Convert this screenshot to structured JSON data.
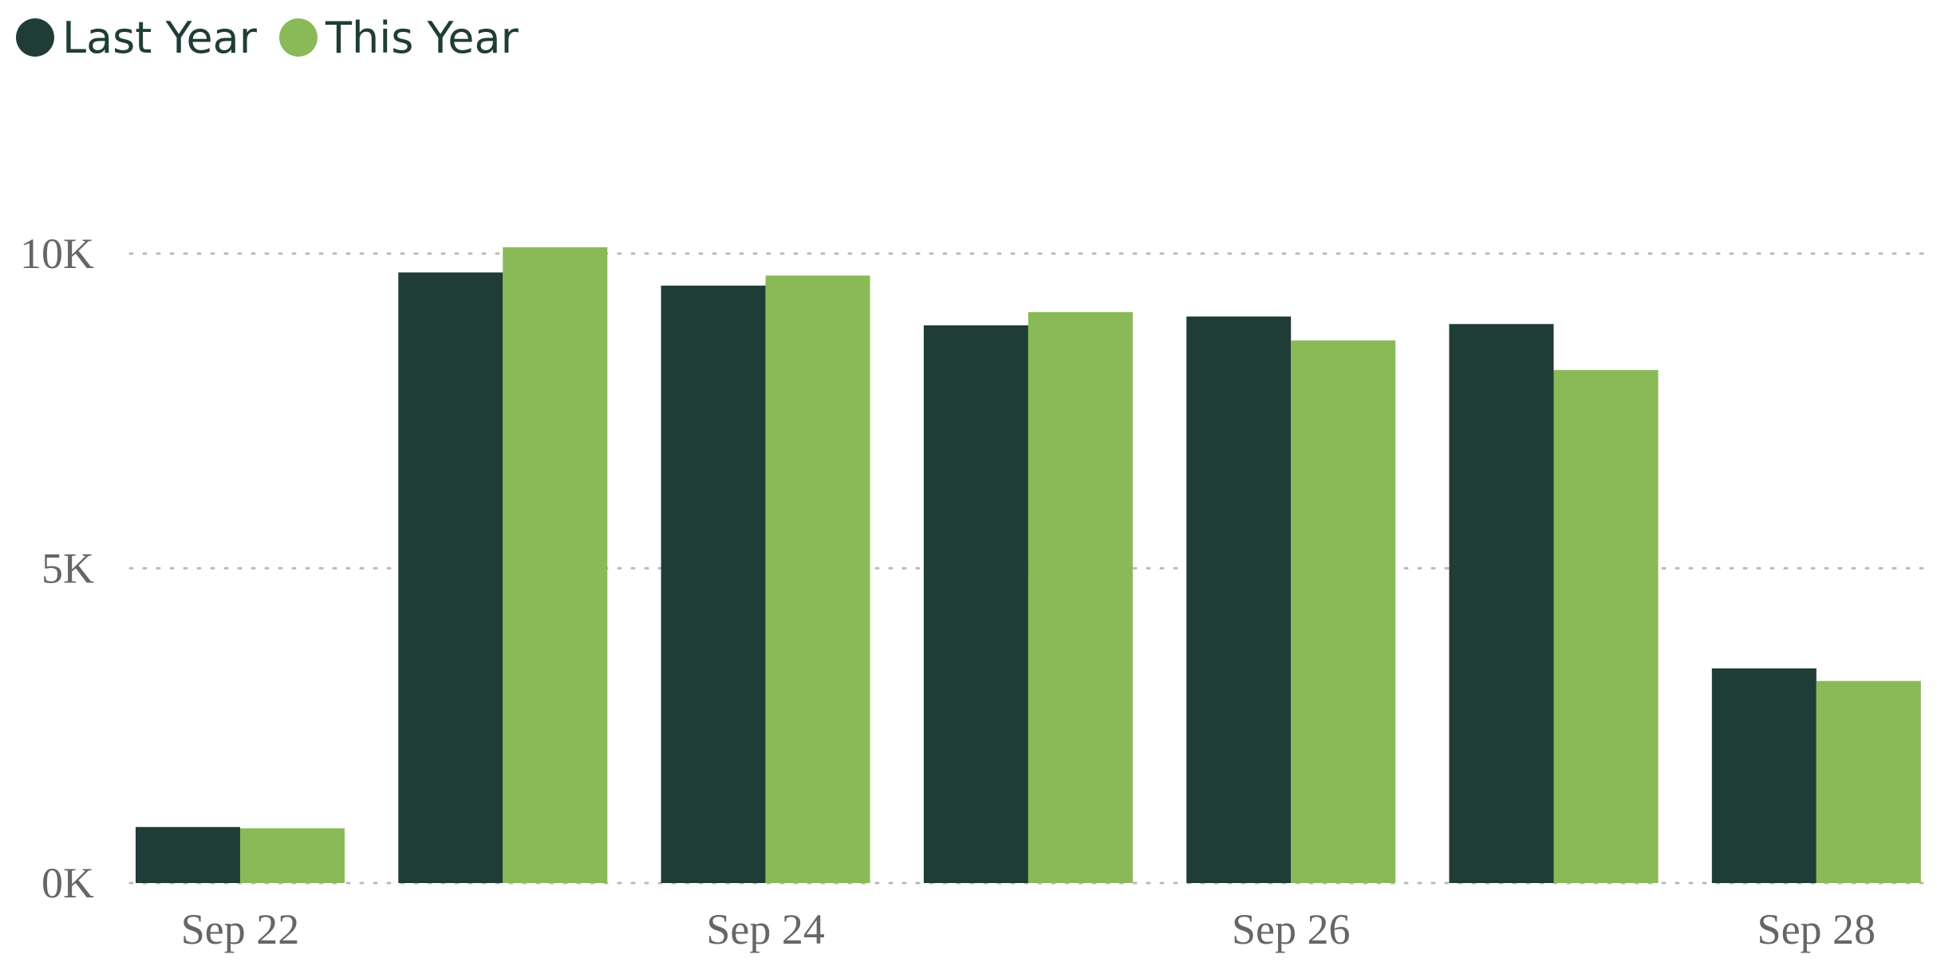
{
  "chart_data": {
    "type": "bar",
    "categories": [
      "Sep 22",
      null,
      "Sep 24",
      null,
      "Sep 26",
      null,
      "Sep 28"
    ],
    "series": [
      {
        "name": "Last Year",
        "color": "#1f3d36",
        "values": [
          890,
          9700,
          9490,
          8860,
          9000,
          8880,
          3410
        ]
      },
      {
        "name": "This Year",
        "color": "#8aba57",
        "values": [
          870,
          10100,
          9650,
          9070,
          8620,
          8150,
          3210
        ]
      }
    ],
    "ylim": [
      0,
      12000
    ],
    "yticks": [
      {
        "value": 0,
        "label": "0K"
      },
      {
        "value": 5000,
        "label": "5K"
      },
      {
        "value": 10000,
        "label": "10K"
      }
    ],
    "grid": true,
    "legend": "top-left"
  }
}
